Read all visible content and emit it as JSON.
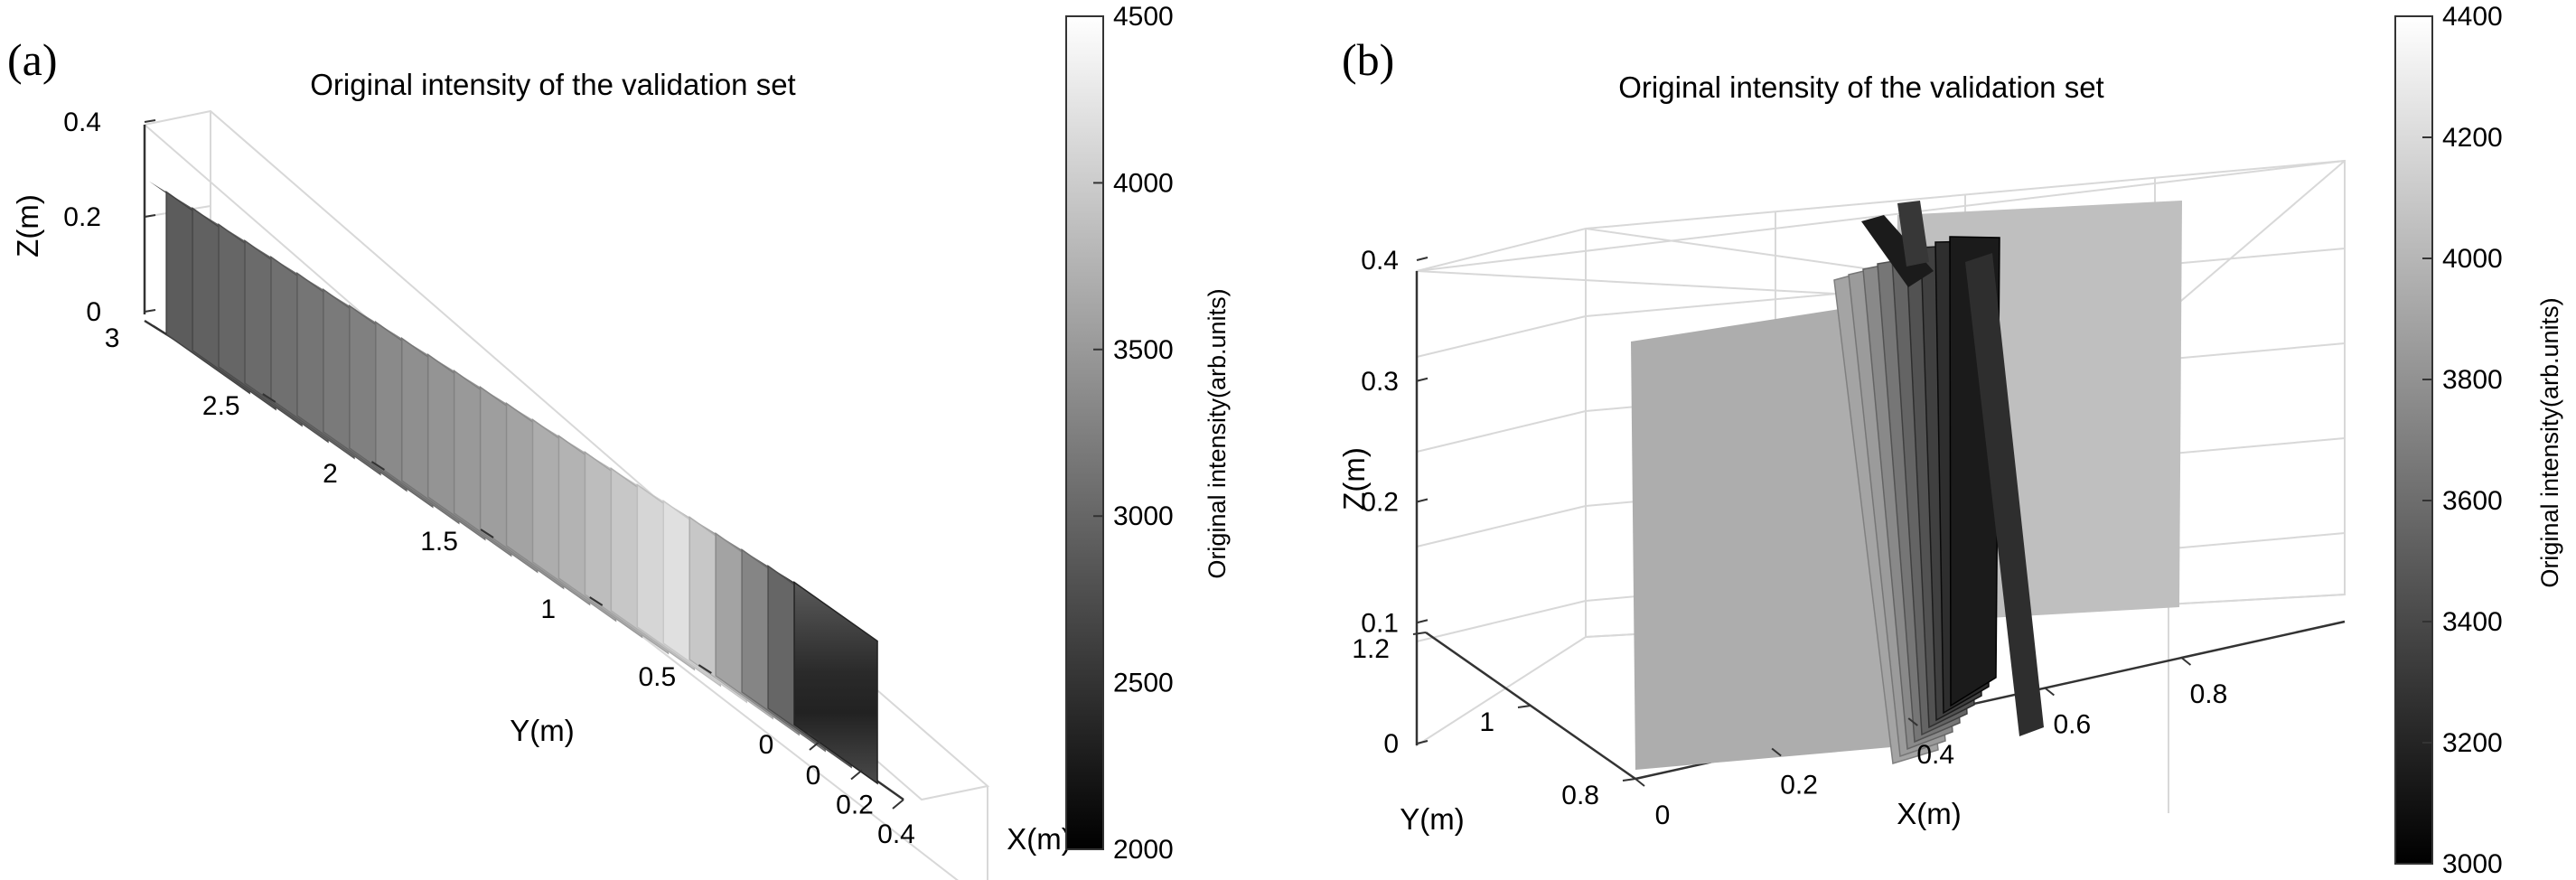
{
  "chart_data": [
    {
      "panel_label": "(a)",
      "type": "scatter3d",
      "title": "Original intensity of the validation set",
      "xlabel": "X(m)",
      "ylabel": "Y(m)",
      "zlabel": "Z(m)",
      "xticks": [
        "0",
        "0.2",
        "0.4"
      ],
      "yticks": [
        "0",
        "0.5",
        "1",
        "1.5",
        "2",
        "2.5",
        "3"
      ],
      "zticks": [
        "0",
        "0.2",
        "0.4"
      ],
      "xlim": [
        0,
        0.4
      ],
      "ylim": [
        0,
        3.1
      ],
      "zlim": [
        0,
        0.4
      ],
      "colorbar": {
        "label": "Original intensity(arb.units)",
        "range": [
          2000,
          4500
        ],
        "ticks": [
          "2000",
          "2500",
          "3000",
          "3500",
          "4000",
          "4500"
        ]
      },
      "colormap": "gray",
      "grid": true,
      "panels_y": [
        3.0,
        2.88,
        2.76,
        2.64,
        2.52,
        2.4,
        2.28,
        2.16,
        2.04,
        1.92,
        1.8,
        1.68,
        1.56,
        1.44,
        1.32,
        1.2,
        1.08,
        0.96,
        0.84,
        0.72,
        0.6,
        0.48,
        0.36,
        0.24,
        0.12
      ],
      "panels_intensity": [
        2900,
        2950,
        3000,
        3050,
        3100,
        3150,
        3200,
        3250,
        3350,
        3400,
        3450,
        3500,
        3550,
        3600,
        3700,
        3750,
        3850,
        3950,
        4100,
        4200,
        3950,
        3600,
        3300,
        3000,
        2600
      ]
    },
    {
      "panel_label": "(b)",
      "type": "scatter3d",
      "title": "Original intensity of the validation set",
      "xlabel": "X(m)",
      "ylabel": "Y(m)",
      "zlabel": "Z(m)",
      "xticks": [
        "0",
        "0.2",
        "0.4",
        "0.6",
        "0.8"
      ],
      "yticks": [
        "0.8",
        "1",
        "1.2"
      ],
      "zticks": [
        "0",
        "0.1",
        "0.2",
        "0.3",
        "0.4"
      ],
      "xlim": [
        0,
        0.8
      ],
      "ylim": [
        0.8,
        1.2
      ],
      "zlim": [
        0,
        0.4
      ],
      "colorbar": {
        "label": "Original intensity(arb.units)",
        "range": [
          3000,
          4400
        ],
        "ticks": [
          "3000",
          "3200",
          "3400",
          "3600",
          "3800",
          "4000",
          "4200",
          "4400"
        ]
      },
      "colormap": "gray",
      "grid": true,
      "rotated_panels_intensity": [
        3900,
        3850,
        3750,
        3650,
        3550,
        3450,
        3350,
        3250,
        3150
      ]
    }
  ]
}
